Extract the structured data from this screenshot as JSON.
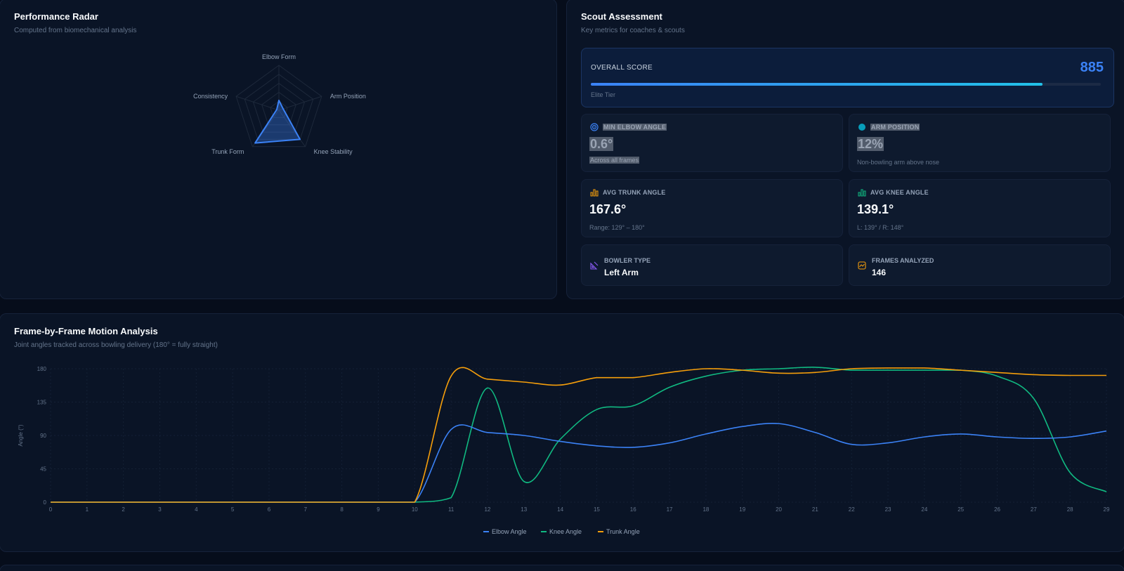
{
  "radar": {
    "title": "Performance Radar",
    "subtitle": "Computed from biomechanical analysis"
  },
  "scout": {
    "title": "Scout Assessment",
    "subtitle": "Key metrics for coaches & scouts",
    "overall": {
      "label": "OVERALL SCORE",
      "value": "885",
      "tier": "Elite Tier",
      "progress": 0.885
    },
    "metrics": [
      {
        "label": "MIN ELBOW ANGLE",
        "value": "0.6°",
        "note": "Across all frames",
        "icon": "target-icon",
        "color": "#3b82f6"
      },
      {
        "label": "ARM POSITION",
        "value": "12%",
        "note": "Non-bowling arm above nose",
        "icon": "dot-icon",
        "color": "#06b6d4"
      },
      {
        "label": "AVG TRUNK ANGLE",
        "value": "167.6°",
        "note": "Range: 129° – 180°",
        "icon": "bar-chart-icon",
        "color": "#f59e0b"
      },
      {
        "label": "AVG KNEE ANGLE",
        "value": "139.1°",
        "note": "L: 139° / R: 148°",
        "icon": "bar-chart-icon",
        "color": "#10b981"
      }
    ],
    "info": [
      {
        "label": "BOWLER TYPE",
        "value": "Left Arm",
        "icon": "ruler-icon",
        "color": "#8b5cf6"
      },
      {
        "label": "FRAMES ANALYZED",
        "value": "146",
        "icon": "chart-frame-icon",
        "color": "#f59e0b"
      }
    ]
  },
  "motion": {
    "title": "Frame-by-Frame Motion Analysis",
    "subtitle": "Joint angles tracked across bowling delivery (180° = fully straight)"
  },
  "chart_data": [
    {
      "type": "radar",
      "title": "Performance Radar",
      "axes": [
        "Elbow Form",
        "Arm Position",
        "Knee Stability",
        "Trunk Form",
        "Consistency"
      ],
      "max": 100,
      "rings": 5,
      "series": [
        {
          "values": [
            22,
            10,
            80,
            90,
            5
          ],
          "color": "#3b82f6"
        }
      ]
    },
    {
      "type": "line",
      "title": "Frame-by-Frame Motion Analysis",
      "xlabel": "",
      "ylabel": "Angle (°)",
      "x": [
        0,
        1,
        2,
        3,
        4,
        5,
        6,
        7,
        8,
        9,
        10,
        11,
        12,
        13,
        14,
        15,
        16,
        17,
        18,
        19,
        20,
        21,
        22,
        23,
        24,
        25,
        26,
        27,
        28,
        29
      ],
      "xlim": [
        0,
        29
      ],
      "ylim": [
        0,
        180
      ],
      "yticks": [
        0,
        45,
        90,
        135,
        180
      ],
      "grid": true,
      "legend": "bottom-center",
      "series": [
        {
          "name": "Elbow Angle",
          "color": "#3b82f6",
          "values": [
            0,
            0,
            0,
            0,
            0,
            0,
            0,
            0,
            0,
            0,
            0,
            98,
            94,
            90,
            82,
            76,
            74,
            80,
            92,
            102,
            106,
            94,
            78,
            80,
            88,
            92,
            88,
            86,
            88,
            96
          ]
        },
        {
          "name": "Knee Angle",
          "color": "#10b981",
          "values": [
            0,
            0,
            0,
            0,
            0,
            0,
            0,
            0,
            0,
            0,
            0,
            6,
            154,
            28,
            85,
            125,
            130,
            155,
            170,
            178,
            180,
            182,
            178,
            178,
            178,
            178,
            170,
            140,
            40,
            14
          ]
        },
        {
          "name": "Trunk Angle",
          "color": "#f59e0b",
          "values": [
            0,
            0,
            0,
            0,
            0,
            0,
            0,
            0,
            0,
            0,
            0,
            170,
            166,
            162,
            158,
            168,
            168,
            175,
            180,
            178,
            174,
            175,
            180,
            181,
            181,
            178,
            175,
            172,
            171,
            171
          ]
        }
      ]
    }
  ]
}
